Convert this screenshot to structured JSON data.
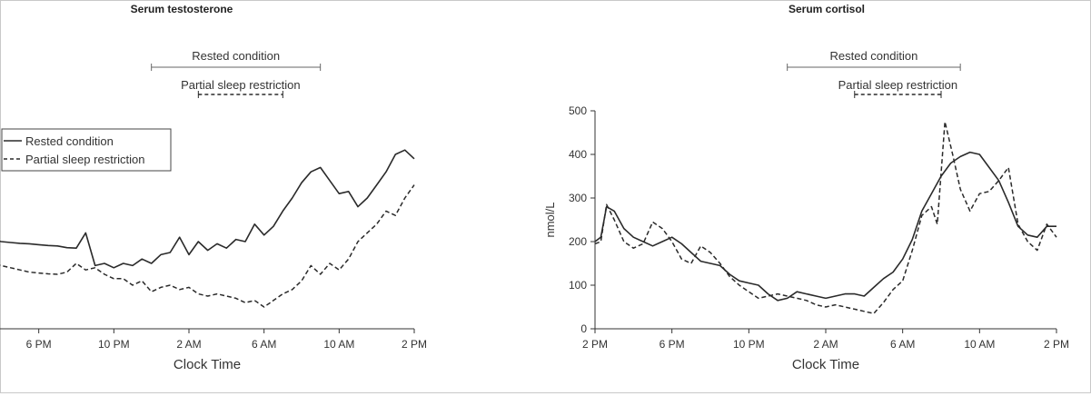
{
  "x_tick_labels": [
    "2 PM",
    "6 PM",
    "10 PM",
    "2 AM",
    "6 AM",
    "10 AM",
    "2 PM"
  ],
  "chart_data": [
    {
      "type": "line",
      "title": "Serum testosterone",
      "xlabel": "Clock Time",
      "ylabel": "",
      "x_unit": "hours since 2 PM",
      "xlim": [
        0,
        24
      ],
      "ylim": [
        0,
        500
      ],
      "y_axis_visible": false,
      "legend": {
        "placement": "top-left",
        "entries": [
          {
            "name": "Rested condition",
            "style": "solid"
          },
          {
            "name": "Partial sleep restriction",
            "style": "dashed"
          }
        ]
      },
      "annotations": [
        {
          "label": "Rested condition",
          "x_start": 10.0,
          "x_end": 19.0,
          "style": "solid"
        },
        {
          "label": "Partial sleep restriction",
          "x_start": 12.5,
          "x_end": 17.0,
          "style": "dashed"
        }
      ],
      "series": [
        {
          "name": "Rested condition",
          "style": "solid",
          "x": [
            0,
            0.5,
            1,
            1.5,
            2,
            2.5,
            3,
            3.5,
            4,
            4.5,
            5,
            5.5,
            6,
            6.5,
            7,
            7.5,
            8,
            8.5,
            9,
            9.5,
            10,
            10.5,
            11,
            11.5,
            12,
            12.5,
            13,
            13.5,
            14,
            14.5,
            15,
            15.5,
            16,
            16.5,
            17,
            17.5,
            18,
            18.5,
            19,
            19.5,
            20,
            20.5,
            21,
            21.5,
            22,
            22.5,
            23,
            23.5,
            24
          ],
          "values": [
            220,
            215,
            210,
            205,
            200,
            198,
            196,
            195,
            193,
            191,
            190,
            186,
            185,
            220,
            145,
            150,
            140,
            150,
            145,
            160,
            150,
            170,
            175,
            210,
            170,
            200,
            180,
            195,
            185,
            205,
            200,
            240,
            215,
            235,
            270,
            300,
            335,
            360,
            370,
            340,
            310,
            315,
            280,
            300,
            330,
            360,
            400,
            410,
            390
          ]
        },
        {
          "name": "Partial sleep restriction",
          "style": "dashed",
          "x": [
            0,
            0.5,
            1,
            1.5,
            2,
            2.5,
            3,
            3.5,
            4,
            4.5,
            5,
            5.5,
            6,
            6.5,
            7,
            7.5,
            8,
            8.5,
            9,
            9.5,
            10,
            10.5,
            11,
            11.5,
            12,
            12.5,
            13,
            13.5,
            14,
            14.5,
            15,
            15.5,
            16,
            16.5,
            17,
            17.5,
            18,
            18.5,
            19,
            19.5,
            20,
            20.5,
            21,
            21.5,
            22,
            22.5,
            23,
            23.5,
            24
          ],
          "values": [
            185,
            175,
            160,
            150,
            145,
            140,
            135,
            130,
            128,
            126,
            125,
            130,
            150,
            135,
            140,
            125,
            115,
            115,
            100,
            110,
            85,
            95,
            100,
            90,
            95,
            80,
            75,
            80,
            75,
            70,
            60,
            65,
            50,
            65,
            80,
            90,
            110,
            145,
            125,
            150,
            135,
            160,
            200,
            220,
            240,
            270,
            260,
            300,
            330
          ]
        }
      ]
    },
    {
      "type": "line",
      "title": "Serum cortisol",
      "xlabel": "Clock Time",
      "ylabel": "nmol/L",
      "x_unit": "hours since 2 PM",
      "xlim": [
        0,
        24
      ],
      "ylim": [
        0,
        500
      ],
      "yticks": [
        0,
        100,
        200,
        300,
        400,
        500
      ],
      "y_axis_visible": true,
      "annotations": [
        {
          "label": "Rested condition",
          "x_start": 10.0,
          "x_end": 19.0,
          "style": "solid"
        },
        {
          "label": "Partial sleep restriction",
          "x_start": 13.5,
          "x_end": 18.0,
          "style": "dashed"
        }
      ],
      "series": [
        {
          "name": "Rested condition",
          "style": "solid",
          "x": [
            0,
            0.3,
            0.6,
            1.0,
            1.5,
            2.0,
            2.5,
            3.0,
            3.5,
            4.0,
            4.5,
            5.0,
            5.5,
            6.0,
            6.5,
            7.0,
            7.5,
            8.0,
            8.5,
            9.0,
            9.5,
            10.0,
            10.5,
            11.0,
            11.5,
            12.0,
            12.5,
            13.0,
            13.5,
            14.0,
            14.5,
            15.0,
            15.5,
            16.0,
            16.5,
            17.0,
            17.5,
            18.0,
            18.5,
            19.0,
            19.5,
            20.0,
            20.5,
            21.0,
            21.5,
            22.0,
            22.5,
            23.0,
            23.5,
            24.0
          ],
          "values": [
            200,
            210,
            280,
            270,
            230,
            210,
            200,
            190,
            200,
            210,
            195,
            175,
            155,
            150,
            145,
            125,
            110,
            105,
            100,
            80,
            65,
            70,
            85,
            80,
            75,
            70,
            75,
            80,
            80,
            75,
            95,
            115,
            130,
            160,
            205,
            270,
            310,
            350,
            380,
            395,
            405,
            400,
            370,
            340,
            290,
            235,
            215,
            210,
            235,
            235
          ]
        },
        {
          "name": "Partial sleep restriction",
          "style": "dashed",
          "x": [
            0,
            0.3,
            0.6,
            1.0,
            1.5,
            2.0,
            2.5,
            3.0,
            3.5,
            4.0,
            4.5,
            5.0,
            5.5,
            6.0,
            6.5,
            7.0,
            7.5,
            8.0,
            8.5,
            9.0,
            9.5,
            10.0,
            10.5,
            11.0,
            11.5,
            12.0,
            12.5,
            13.0,
            13.5,
            14.0,
            14.5,
            15.0,
            15.5,
            16.0,
            16.5,
            17.0,
            17.5,
            17.8,
            18.2,
            18.6,
            19.0,
            19.5,
            20.0,
            20.5,
            21.0,
            21.5,
            22.0,
            22.5,
            23.0,
            23.5,
            24.0
          ],
          "values": [
            195,
            200,
            285,
            250,
            200,
            185,
            195,
            245,
            230,
            200,
            160,
            150,
            190,
            175,
            150,
            120,
            100,
            85,
            70,
            75,
            80,
            75,
            70,
            65,
            55,
            50,
            55,
            50,
            45,
            40,
            35,
            60,
            90,
            110,
            180,
            260,
            280,
            240,
            475,
            400,
            320,
            270,
            310,
            315,
            340,
            370,
            240,
            200,
            180,
            240,
            210
          ]
        }
      ]
    }
  ]
}
